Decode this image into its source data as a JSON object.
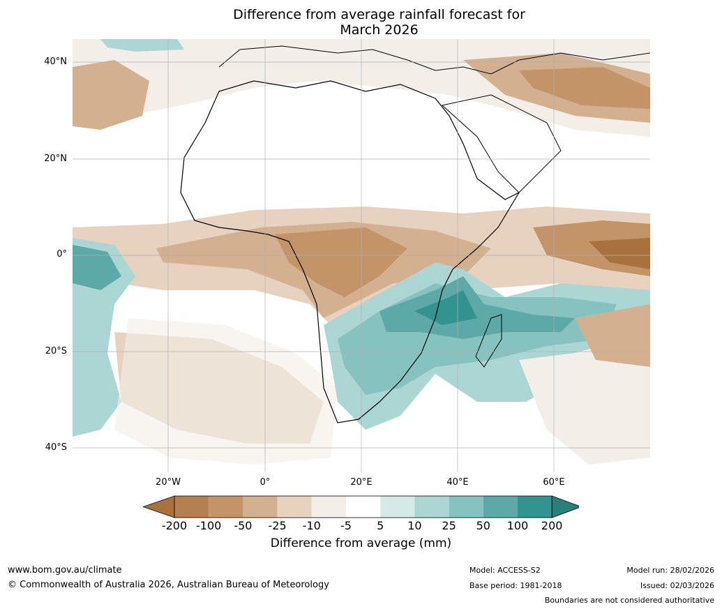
{
  "title": {
    "line1": "Difference from average rainfall forecast for",
    "line2": "March 2026"
  },
  "map": {
    "region": "Africa",
    "lat_labels": [
      "40°N",
      "20°N",
      "0°",
      "20°S",
      "40°S"
    ],
    "lon_labels": [
      "20°W",
      "0°",
      "20°E",
      "40°E",
      "60°E"
    ],
    "gridlines": true
  },
  "colorbar": {
    "label": "Difference from average (mm)",
    "ticks": [
      "-200",
      "-100",
      "-50",
      "-25",
      "-10",
      "-5",
      "5",
      "10",
      "25",
      "50",
      "100",
      "200"
    ],
    "colors": [
      "#a8723f",
      "#b48050",
      "#c29467",
      "#d3b08f",
      "#e6d2bf",
      "#f3eee8",
      "#ffffff",
      "#d5e9e6",
      "#acd6d3",
      "#86c2c0",
      "#5ca9a8",
      "#33948f",
      "#2a7f7b"
    ],
    "extend": "both"
  },
  "footer": {
    "website": "www.bom.gov.au/climate",
    "copyright": "© Commonwealth of Australia 2026, Australian Bureau of Meteorology",
    "model": "Model: ACCESS-S2",
    "base_period": "Base period: 1981-2018",
    "model_run": "Model run: 28/02/2026",
    "issued": "Issued: 02/03/2026",
    "disclaimer": "Boundaries are not considered authoritative"
  }
}
